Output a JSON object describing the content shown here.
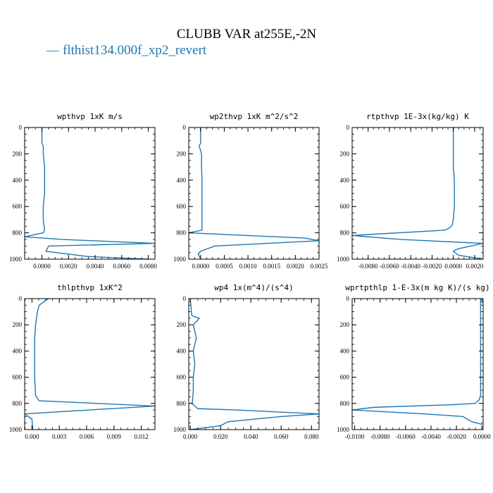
{
  "figure": {
    "title": "CLUBB VAR at255E,-2N",
    "legend": [
      {
        "label": "flthist134.000f_xp2_revert",
        "color": "#1f77b4",
        "marker": "—"
      }
    ]
  },
  "chart_data": [
    {
      "type": "line",
      "title": "wpthvp  1xK m/s",
      "xlim": [
        -0.0013,
        0.0085
      ],
      "ylim": [
        1000,
        0
      ],
      "xticks": [
        0.0,
        0.002,
        0.004,
        0.006,
        0.008
      ],
      "xtick_labels": [
        "0.0000",
        "0.0020",
        "0.0040",
        "0.0060",
        "0.0080"
      ],
      "yticks": [
        0,
        200,
        400,
        600,
        800,
        1000
      ],
      "ytick_labels": [
        "0",
        "200",
        "400",
        "600",
        "800",
        "1000"
      ],
      "series": [
        {
          "color": "#1f77b4",
          "x": [
            0.0,
            0.0,
            0.0001,
            0.0001,
            0.0002,
            0.0002,
            0.0002,
            0.0001,
            0.0001,
            0.0002,
            0.0001,
            -0.0013,
            0.0015,
            0.0085,
            0.0005,
            0.0003,
            0.0035,
            0.008
          ],
          "y": [
            0,
            120,
            140,
            200,
            300,
            400,
            500,
            600,
            700,
            780,
            800,
            830,
            850,
            880,
            900,
            940,
            980,
            1000
          ]
        }
      ]
    },
    {
      "type": "line",
      "title": "wp2thvp  1xK m^2/s^2",
      "xlim": [
        -0.00025,
        0.0025
      ],
      "ylim": [
        1000,
        0
      ],
      "xticks": [
        0.0,
        0.0005,
        0.001,
        0.0015,
        0.002,
        0.0025
      ],
      "xtick_labels": [
        "0.0000",
        "0.0005",
        "0.0010",
        "0.0015",
        "0.0020",
        "0.0025"
      ],
      "yticks": [
        0,
        200,
        400,
        600,
        800,
        1000
      ],
      "ytick_labels": [
        "0",
        "200",
        "400",
        "600",
        "800",
        "1000"
      ],
      "series": [
        {
          "color": "#1f77b4",
          "x": [
            0.0,
            0.0,
            -3e-05,
            2e-05,
            2e-05,
            3e-05,
            3e-05,
            3e-05,
            3e-05,
            3e-05,
            -0.00025,
            0.0022,
            0.0025,
            0.0003,
            0.0,
            -5e-05,
            0.0
          ],
          "y": [
            0,
            120,
            140,
            200,
            300,
            400,
            500,
            600,
            700,
            780,
            800,
            840,
            860,
            900,
            940,
            960,
            1000
          ]
        }
      ]
    },
    {
      "type": "line",
      "title": "rtpthvp  1E-3x(kg/kg) K",
      "xlim": [
        -0.0095,
        0.0028
      ],
      "ylim": [
        1000,
        0
      ],
      "xticks": [
        -0.008,
        -0.006,
        -0.004,
        -0.002,
        0.0,
        0.002
      ],
      "xtick_labels": [
        "-0.0080",
        "-0.0060",
        "-0.0040",
        "-0.0020",
        "0.0000",
        "0.0020"
      ],
      "yticks": [
        0,
        200,
        400,
        600,
        800,
        1000
      ],
      "ytick_labels": [
        "0",
        "200",
        "400",
        "600",
        "800",
        "1000"
      ],
      "series": [
        {
          "color": "#1f77b4",
          "x": [
            0.0,
            0.0,
            0.0,
            0.0001,
            0.0001,
            0.0001,
            0.0,
            -0.0001,
            -0.0003,
            -0.0008,
            -0.0095,
            -0.005,
            0.0028,
            0.0005,
            0.0,
            0.0005,
            0.0028
          ],
          "y": [
            0,
            200,
            300,
            400,
            500,
            600,
            700,
            740,
            760,
            780,
            820,
            850,
            880,
            920,
            940,
            970,
            1000
          ]
        }
      ]
    },
    {
      "type": "line",
      "title": "thlpthvp  1xK^2",
      "xlim": [
        -0.0008,
        0.0135
      ],
      "ylim": [
        1000,
        0
      ],
      "xticks": [
        0.0,
        0.003,
        0.006,
        0.009,
        0.012
      ],
      "xtick_labels": [
        "0.000",
        "0.003",
        "0.006",
        "0.009",
        "0.012"
      ],
      "yticks": [
        0,
        200,
        400,
        600,
        800,
        1000
      ],
      "ytick_labels": [
        "0",
        "200",
        "400",
        "600",
        "800",
        "1000"
      ],
      "series": [
        {
          "color": "#1f77b4",
          "x": [
            0.0018,
            0.0008,
            0.0006,
            0.0004,
            0.0003,
            0.0003,
            0.0003,
            0.0003,
            0.0004,
            0.0008,
            0.0135,
            0.0015,
            -0.0008,
            0.0,
            0.0001
          ],
          "y": [
            0,
            50,
            100,
            200,
            300,
            400,
            500,
            600,
            740,
            780,
            820,
            870,
            880,
            920,
            1000
          ]
        }
      ]
    },
    {
      "type": "line",
      "title": "wp4  1x(m^4)/(s^4)",
      "xlim": [
        -0.001,
        0.085
      ],
      "ylim": [
        1000,
        0
      ],
      "xticks": [
        0.0,
        0.02,
        0.04,
        0.06,
        0.08
      ],
      "xtick_labels": [
        "0.000",
        "0.020",
        "0.040",
        "0.060",
        "0.080"
      ],
      "yticks": [
        0,
        200,
        400,
        600,
        800,
        1000
      ],
      "ytick_labels": [
        "0",
        "200",
        "400",
        "600",
        "800",
        "1000"
      ],
      "series": [
        {
          "color": "#1f77b4",
          "x": [
            0.0,
            0.001,
            0.006,
            0.002,
            0.004,
            0.002,
            0.003,
            0.002,
            0.002,
            0.0015,
            0.001,
            0.003,
            0.005,
            0.03,
            0.085,
            0.06,
            0.025,
            0.02,
            0.0
          ],
          "y": [
            0,
            130,
            150,
            200,
            300,
            400,
            500,
            600,
            700,
            780,
            800,
            820,
            840,
            850,
            880,
            900,
            940,
            970,
            1000
          ]
        }
      ]
    },
    {
      "type": "line",
      "title": "wprtpthlp  1-E-3x(m kg K)/(s kg)",
      "xlim": [
        -0.0102,
        0.0001
      ],
      "ylim": [
        1000,
        0
      ],
      "xticks": [
        -0.01,
        -0.008,
        -0.006,
        -0.004,
        -0.002,
        0.0
      ],
      "xtick_labels": [
        "-0.0100",
        "-0.0080",
        "-0.0060",
        "-0.0040",
        "-0.0020",
        "0.0000"
      ],
      "yticks": [
        0,
        200,
        400,
        600,
        800,
        1000
      ],
      "ytick_labels": [
        "0",
        "200",
        "400",
        "600",
        "800",
        "1000"
      ],
      "series": [
        {
          "color": "#1f77b4",
          "x": [
            -0.0001,
            -0.0001,
            -0.0001,
            -0.0001,
            -0.0001,
            -0.0001,
            -0.0002,
            -0.0005,
            -0.0025,
            -0.0085,
            -0.0102,
            -0.0045,
            -0.0015,
            -0.0008,
            0.0
          ],
          "y": [
            0,
            200,
            400,
            600,
            700,
            740,
            770,
            800,
            810,
            830,
            850,
            880,
            900,
            940,
            960
          ]
        }
      ]
    }
  ]
}
